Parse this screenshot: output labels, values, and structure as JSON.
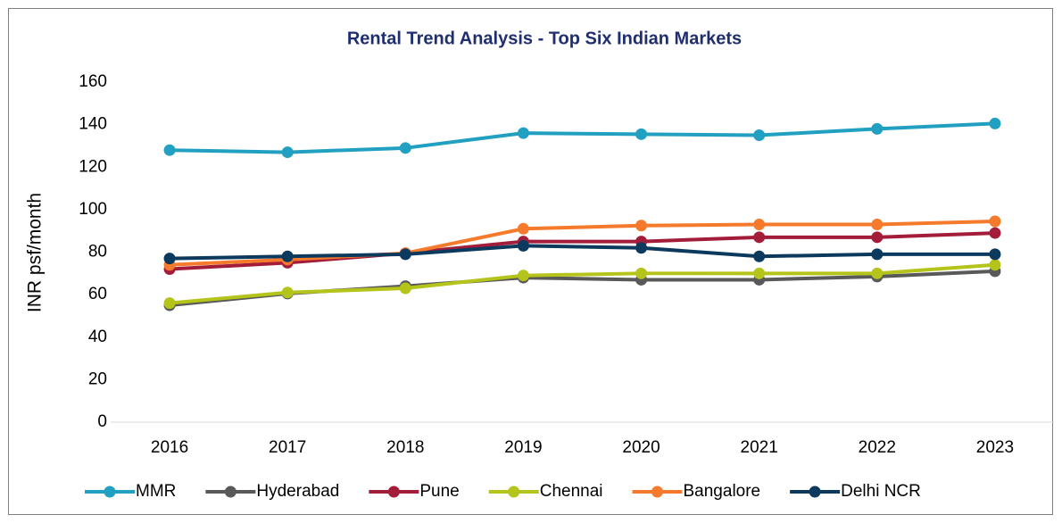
{
  "chart_data": {
    "type": "line",
    "title": "Rental Trend Analysis - Top Six Indian Markets",
    "y_label": "INR psf/month",
    "categories": [
      "2016",
      "2017",
      "2018",
      "2019",
      "2020",
      "2021",
      "2022",
      "2023"
    ],
    "series": [
      {
        "name": "MMR",
        "color": "#22a0c1",
        "values": [
          128,
          127,
          129,
          136,
          135.5,
          135,
          138,
          140.5
        ]
      },
      {
        "name": "Hyderabad",
        "color": "#595959",
        "values": [
          55,
          60.5,
          64,
          68,
          67,
          67,
          68.5,
          71
        ]
      },
      {
        "name": "Pune",
        "color": "#a31d3b",
        "values": [
          72,
          75,
          79.5,
          85,
          85,
          87,
          87,
          89
        ]
      },
      {
        "name": "Chennai",
        "color": "#b4c41a",
        "values": [
          56,
          61,
          63,
          69,
          70,
          70,
          70,
          74
        ]
      },
      {
        "name": "Bangalore",
        "color": "#f57a2b",
        "values": [
          74,
          76.5,
          79.5,
          91,
          92.5,
          93,
          93,
          94.5
        ]
      },
      {
        "name": "Delhi NCR",
        "color": "#0c3a5f",
        "values": [
          77,
          78,
          79,
          83,
          82,
          78,
          79,
          79
        ]
      }
    ],
    "ylim": [
      0,
      160
    ],
    "yticks": [
      0,
      20,
      40,
      60,
      80,
      100,
      120,
      140,
      160
    ],
    "grid": false,
    "legend": "bottom"
  }
}
